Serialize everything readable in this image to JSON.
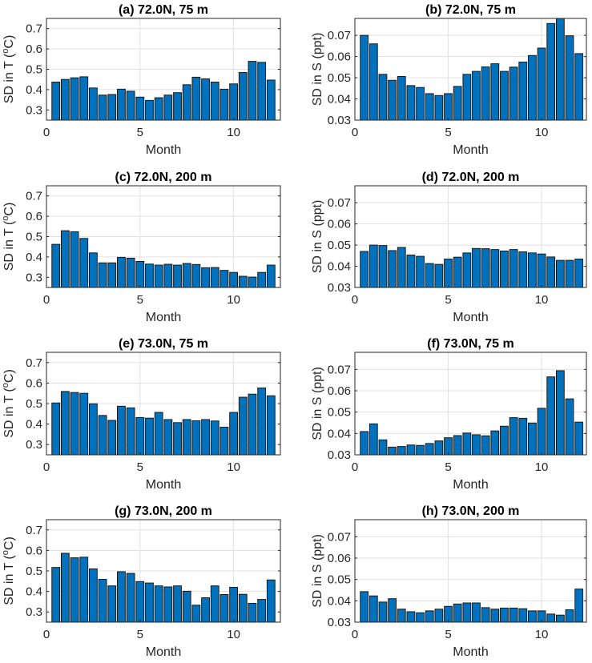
{
  "chart_data": [
    {
      "type": "bar",
      "title": "(a) 72.0N, 75 m",
      "xlabel": "Month",
      "ylabel": "SD in T (",
      "ylabel_sup": "o",
      "ylabel_end": "C)",
      "xlim": [
        0,
        12.5
      ],
      "ylim": [
        0.25,
        0.75
      ],
      "xticks": [
        0,
        5,
        10
      ],
      "yticks": [
        0.3,
        0.4,
        0.5,
        0.6,
        0.7
      ],
      "grid": true,
      "x": [
        0.5,
        1,
        1.5,
        2,
        2.5,
        3,
        3.5,
        4,
        4.5,
        5,
        5.5,
        6,
        6.5,
        7,
        7.5,
        8,
        8.5,
        9,
        9.5,
        10,
        10.5,
        11,
        11.5,
        12
      ],
      "values": [
        0.437,
        0.45,
        0.458,
        0.463,
        0.408,
        0.373,
        0.376,
        0.402,
        0.392,
        0.363,
        0.347,
        0.36,
        0.373,
        0.385,
        0.424,
        0.461,
        0.453,
        0.437,
        0.402,
        0.428,
        0.484,
        0.539,
        0.534,
        0.447
      ]
    },
    {
      "type": "bar",
      "title": "(b) 72.0N, 75 m",
      "xlabel": "Month",
      "ylabel": "SD in S (ppt)",
      "xlim": [
        0,
        12.4
      ],
      "ylim": [
        0.03,
        0.078
      ],
      "xticks": [
        0,
        5,
        10
      ],
      "yticks": [
        0.03,
        0.04,
        0.05,
        0.06,
        0.07
      ],
      "grid": true,
      "x": [
        0.5,
        1,
        1.5,
        2,
        2.5,
        3,
        3.5,
        4,
        4.5,
        5,
        5.5,
        6,
        6.5,
        7,
        7.5,
        8,
        8.5,
        9,
        9.5,
        10,
        10.5,
        11,
        11.5,
        12
      ],
      "values": [
        0.07,
        0.066,
        0.0516,
        0.0488,
        0.0506,
        0.0463,
        0.0454,
        0.0425,
        0.0416,
        0.0425,
        0.0459,
        0.0516,
        0.053,
        0.0551,
        0.0566,
        0.053,
        0.055,
        0.0574,
        0.0605,
        0.064,
        0.0756,
        0.078,
        0.0698,
        0.0614
      ]
    },
    {
      "type": "bar",
      "title": "(c) 72.0N, 200 m",
      "xlabel": "Month",
      "ylabel": "SD in T (",
      "ylabel_sup": "o",
      "ylabel_end": "C)",
      "xlim": [
        0,
        12.5
      ],
      "ylim": [
        0.25,
        0.75
      ],
      "xticks": [
        0,
        5,
        10
      ],
      "yticks": [
        0.3,
        0.4,
        0.5,
        0.6,
        0.7
      ],
      "grid": true,
      "x": [
        0.5,
        1,
        1.5,
        2,
        2.5,
        3,
        3.5,
        4,
        4.5,
        5,
        5.5,
        6,
        6.5,
        7,
        7.5,
        8,
        8.5,
        9,
        9.5,
        10,
        10.5,
        11,
        11.5,
        12
      ],
      "values": [
        0.462,
        0.529,
        0.524,
        0.491,
        0.42,
        0.371,
        0.371,
        0.398,
        0.394,
        0.378,
        0.365,
        0.36,
        0.364,
        0.36,
        0.368,
        0.363,
        0.347,
        0.348,
        0.334,
        0.324,
        0.305,
        0.301,
        0.324,
        0.36
      ]
    },
    {
      "type": "bar",
      "title": "(d) 72.0N, 200 m",
      "xlabel": "Month",
      "ylabel": "SD in S (ppt)",
      "xlim": [
        0,
        12.4
      ],
      "ylim": [
        0.03,
        0.078
      ],
      "xticks": [
        0,
        5,
        10
      ],
      "yticks": [
        0.03,
        0.04,
        0.05,
        0.06,
        0.07
      ],
      "grid": true,
      "x": [
        0.5,
        1,
        1.5,
        2,
        2.5,
        3,
        3.5,
        4,
        4.5,
        5,
        5.5,
        6,
        6.5,
        7,
        7.5,
        8,
        8.5,
        9,
        9.5,
        10,
        10.5,
        11,
        11.5,
        12
      ],
      "values": [
        0.047,
        0.05,
        0.0498,
        0.0474,
        0.0489,
        0.0453,
        0.0447,
        0.0413,
        0.0409,
        0.0434,
        0.0443,
        0.0463,
        0.0484,
        0.0483,
        0.0479,
        0.0472,
        0.0479,
        0.0468,
        0.0463,
        0.0458,
        0.0444,
        0.0428,
        0.0428,
        0.0434
      ]
    },
    {
      "type": "bar",
      "title": "(e) 73.0N, 75 m",
      "xlabel": "Month",
      "ylabel": "SD in T (",
      "ylabel_sup": "o",
      "ylabel_end": "C)",
      "xlim": [
        0,
        12.5
      ],
      "ylim": [
        0.25,
        0.75
      ],
      "xticks": [
        0,
        5,
        10
      ],
      "yticks": [
        0.3,
        0.4,
        0.5,
        0.6,
        0.7
      ],
      "grid": true,
      "x": [
        0.5,
        1,
        1.5,
        2,
        2.5,
        3,
        3.5,
        4,
        4.5,
        5,
        5.5,
        6,
        6.5,
        7,
        7.5,
        8,
        8.5,
        9,
        9.5,
        10,
        10.5,
        11,
        11.5,
        12
      ],
      "values": [
        0.503,
        0.559,
        0.554,
        0.55,
        0.499,
        0.442,
        0.418,
        0.487,
        0.479,
        0.432,
        0.429,
        0.457,
        0.422,
        0.407,
        0.422,
        0.416,
        0.422,
        0.415,
        0.385,
        0.457,
        0.531,
        0.546,
        0.576,
        0.538
      ]
    },
    {
      "type": "bar",
      "title": "(f) 73.0N, 75 m",
      "xlabel": "Month",
      "ylabel": "SD in S (ppt)",
      "xlim": [
        0,
        12.4
      ],
      "ylim": [
        0.03,
        0.078
      ],
      "xticks": [
        0,
        5,
        10
      ],
      "yticks": [
        0.03,
        0.04,
        0.05,
        0.06,
        0.07
      ],
      "grid": true,
      "x": [
        0.5,
        1,
        1.5,
        2,
        2.5,
        3,
        3.5,
        4,
        4.5,
        5,
        5.5,
        6,
        6.5,
        7,
        7.5,
        8,
        8.5,
        9,
        9.5,
        10,
        10.5,
        11,
        11.5,
        12
      ],
      "values": [
        0.0409,
        0.0445,
        0.037,
        0.0336,
        0.0339,
        0.0346,
        0.0344,
        0.0353,
        0.0365,
        0.038,
        0.039,
        0.0402,
        0.0394,
        0.0389,
        0.0412,
        0.0434,
        0.0474,
        0.0471,
        0.0449,
        0.0518,
        0.0665,
        0.0694,
        0.0562,
        0.0453
      ]
    },
    {
      "type": "bar",
      "title": "(g) 73.0N, 200 m",
      "xlabel": "Month",
      "ylabel": "SD in T (",
      "ylabel_sup": "o",
      "ylabel_end": "C)",
      "xlim": [
        0,
        12.5
      ],
      "ylim": [
        0.25,
        0.75
      ],
      "xticks": [
        0,
        5,
        10
      ],
      "yticks": [
        0.3,
        0.4,
        0.5,
        0.6,
        0.7
      ],
      "grid": true,
      "x": [
        0.5,
        1,
        1.5,
        2,
        2.5,
        3,
        3.5,
        4,
        4.5,
        5,
        5.5,
        6,
        6.5,
        7,
        7.5,
        8,
        8.5,
        9,
        9.5,
        10,
        10.5,
        11,
        11.5,
        12
      ],
      "values": [
        0.517,
        0.586,
        0.564,
        0.567,
        0.51,
        0.459,
        0.427,
        0.496,
        0.488,
        0.448,
        0.441,
        0.427,
        0.422,
        0.427,
        0.401,
        0.333,
        0.369,
        0.427,
        0.385,
        0.42,
        0.386,
        0.342,
        0.361,
        0.456
      ]
    },
    {
      "type": "bar",
      "title": "(h) 73.0N, 200 m",
      "xlabel": "Month",
      "ylabel": "SD in S (ppt)",
      "xlim": [
        0,
        12.4
      ],
      "ylim": [
        0.03,
        0.078
      ],
      "xticks": [
        0,
        5,
        10
      ],
      "yticks": [
        0.03,
        0.04,
        0.05,
        0.06,
        0.07
      ],
      "grid": true,
      "x": [
        0.5,
        1,
        1.5,
        2,
        2.5,
        3,
        3.5,
        4,
        4.5,
        5,
        5.5,
        6,
        6.5,
        7,
        7.5,
        8,
        8.5,
        9,
        9.5,
        10,
        10.5,
        11,
        11.5,
        12
      ],
      "values": [
        0.0443,
        0.0423,
        0.0394,
        0.041,
        0.0361,
        0.0349,
        0.0344,
        0.0353,
        0.0361,
        0.0374,
        0.0385,
        0.039,
        0.039,
        0.0368,
        0.0361,
        0.0366,
        0.0366,
        0.0363,
        0.0353,
        0.0353,
        0.0338,
        0.0333,
        0.0358,
        0.0455
      ]
    }
  ],
  "colors": {
    "bar": "#0072BD",
    "edge": "#1a1a1a",
    "grid": "#e0e0e0",
    "axis": "#262626"
  }
}
